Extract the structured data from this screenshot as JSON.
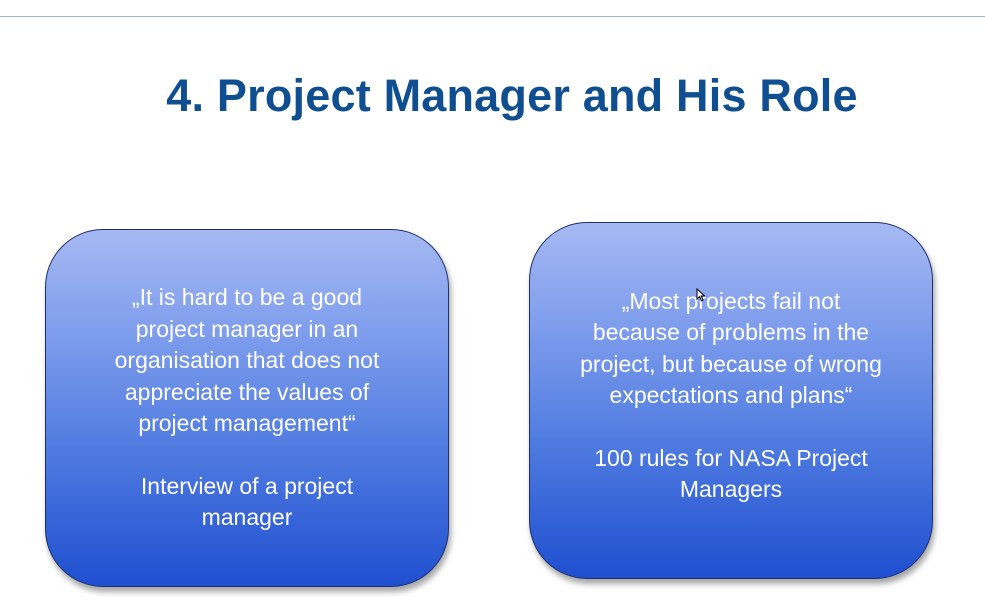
{
  "slide": {
    "title": "4. Project Manager and His Role"
  },
  "quotes": [
    {
      "text": "„It is hard to be a good\nproject manager in an\norganisation that does not\nappreciate the values of\nproject management“",
      "source": "Interview of a project\nmanager"
    },
    {
      "text": "„Most projects fail not\nbecause of problems in the\nproject, but because of wrong\nexpectations and plans“",
      "source": "100 rules for NASA Project\nManagers"
    }
  ],
  "colors": {
    "title": "#0f4f91",
    "box_top": "#a6b9f3",
    "box_bottom": "#1f4fd0",
    "box_border": "#1d2f6b",
    "rule": "#9fb7cc"
  },
  "icons": {
    "cursor": "mouse-pointer-icon"
  }
}
